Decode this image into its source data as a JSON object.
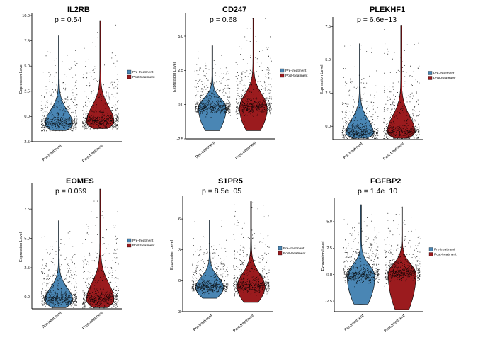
{
  "figure": {
    "description_free": true
  },
  "chart_data": [
    {
      "type": "violin",
      "title": "IL2RB",
      "pvalue_label": "p = 0.54",
      "ylabel": "Expression Level",
      "ylim": [
        -2.5,
        10
      ],
      "yticks": [
        "-2.5",
        "0.0",
        "2.5",
        "5.0",
        "7.5",
        "10.0"
      ],
      "ytick_values": [
        -2.5,
        0,
        2.5,
        5,
        7.5,
        10
      ],
      "categories": [
        "Pre-treatment",
        "Post-treatment"
      ],
      "median": [
        -0.7,
        -0.5
      ],
      "max": [
        8.0,
        9.5
      ],
      "min": [
        -1.4,
        -1.2
      ],
      "legend": [
        "Pre-treatment",
        "Post-treatment"
      ]
    },
    {
      "type": "violin",
      "title": "CD247",
      "pvalue_label": "p = 0.68",
      "ylabel": "Expression Level",
      "ylim": [
        -2.5,
        6.5
      ],
      "yticks": [
        "-2.5",
        "0.0",
        "2.5",
        "5.0"
      ],
      "ytick_values": [
        -2.5,
        0,
        2.5,
        5
      ],
      "categories": [
        "Pre-treatment",
        "Post-treatment"
      ],
      "median": [
        -0.2,
        -0.2
      ],
      "max": [
        4.3,
        6.3
      ],
      "min": [
        -1.9,
        -1.9
      ],
      "legend": [
        "Pre-treatment",
        "Post-treatment"
      ]
    },
    {
      "type": "violin",
      "title": "PLEKHF1",
      "pvalue_label": "p = 6.6e−13",
      "ylabel": "Expression Level",
      "ylim": [
        -1.0,
        8
      ],
      "yticks": [
        "0.0",
        "2.5",
        "5.0",
        "7.5"
      ],
      "ytick_values": [
        0,
        2.5,
        5,
        7.5
      ],
      "categories": [
        "Pre-treatment",
        "Post-treatment"
      ],
      "median": [
        -0.5,
        -0.4
      ],
      "max": [
        6.2,
        7.6
      ],
      "min": [
        -0.9,
        -0.9
      ],
      "legend": [
        "Pre-treatment",
        "Post-treatment"
      ]
    },
    {
      "type": "violin",
      "title": "EOMES",
      "pvalue_label": "p = 0.069",
      "ylabel": "Expression Level",
      "ylim": [
        -1.0,
        9.5
      ],
      "yticks": [
        "0.0",
        "2.5",
        "5.0",
        "7.5"
      ],
      "ytick_values": [
        0,
        2.5,
        5,
        7.5
      ],
      "categories": [
        "Pre-treatment",
        "Post-treatment"
      ],
      "median": [
        -0.2,
        -0.2
      ],
      "max": [
        6.5,
        9.2
      ],
      "min": [
        -0.9,
        -0.9
      ],
      "legend": [
        "Pre-treatment",
        "Post-treatment"
      ]
    },
    {
      "type": "violin",
      "title": "S1PR5",
      "pvalue_label": "p = 8.5e−05",
      "ylabel": "Expression Level",
      "ylim": [
        -3,
        8
      ],
      "yticks": [
        "-3",
        "0",
        "3",
        "6"
      ],
      "ytick_values": [
        -3,
        0,
        3,
        6
      ],
      "categories": [
        "Pre-treatment",
        "Post-treatment"
      ],
      "median": [
        -0.6,
        -0.5
      ],
      "max": [
        5.9,
        7.7
      ],
      "min": [
        -1.7,
        -2.1
      ],
      "legend": [
        "Pre-treatment",
        "Post-treatment"
      ]
    },
    {
      "type": "violin",
      "title": "FGFBP2",
      "pvalue_label": "p = 1.4e−10",
      "ylabel": "Expression Level",
      "ylim": [
        -3.5,
        7
      ],
      "yticks": [
        "-2.5",
        "0.0",
        "2.5",
        "5.0"
      ],
      "ytick_values": [
        -2.5,
        0,
        2.5,
        5
      ],
      "categories": [
        "Pre-treatment",
        "Post-treatment"
      ],
      "median": [
        -0.1,
        0.1
      ],
      "max": [
        6.6,
        6.4
      ],
      "min": [
        -2.8,
        -3.3
      ],
      "legend": [
        "Pre-treatment",
        "Post-treatment"
      ]
    }
  ],
  "colors": {
    "pre": "#4a86b4",
    "post": "#9b1b1e",
    "points": "#000000",
    "axis": "#000000"
  }
}
